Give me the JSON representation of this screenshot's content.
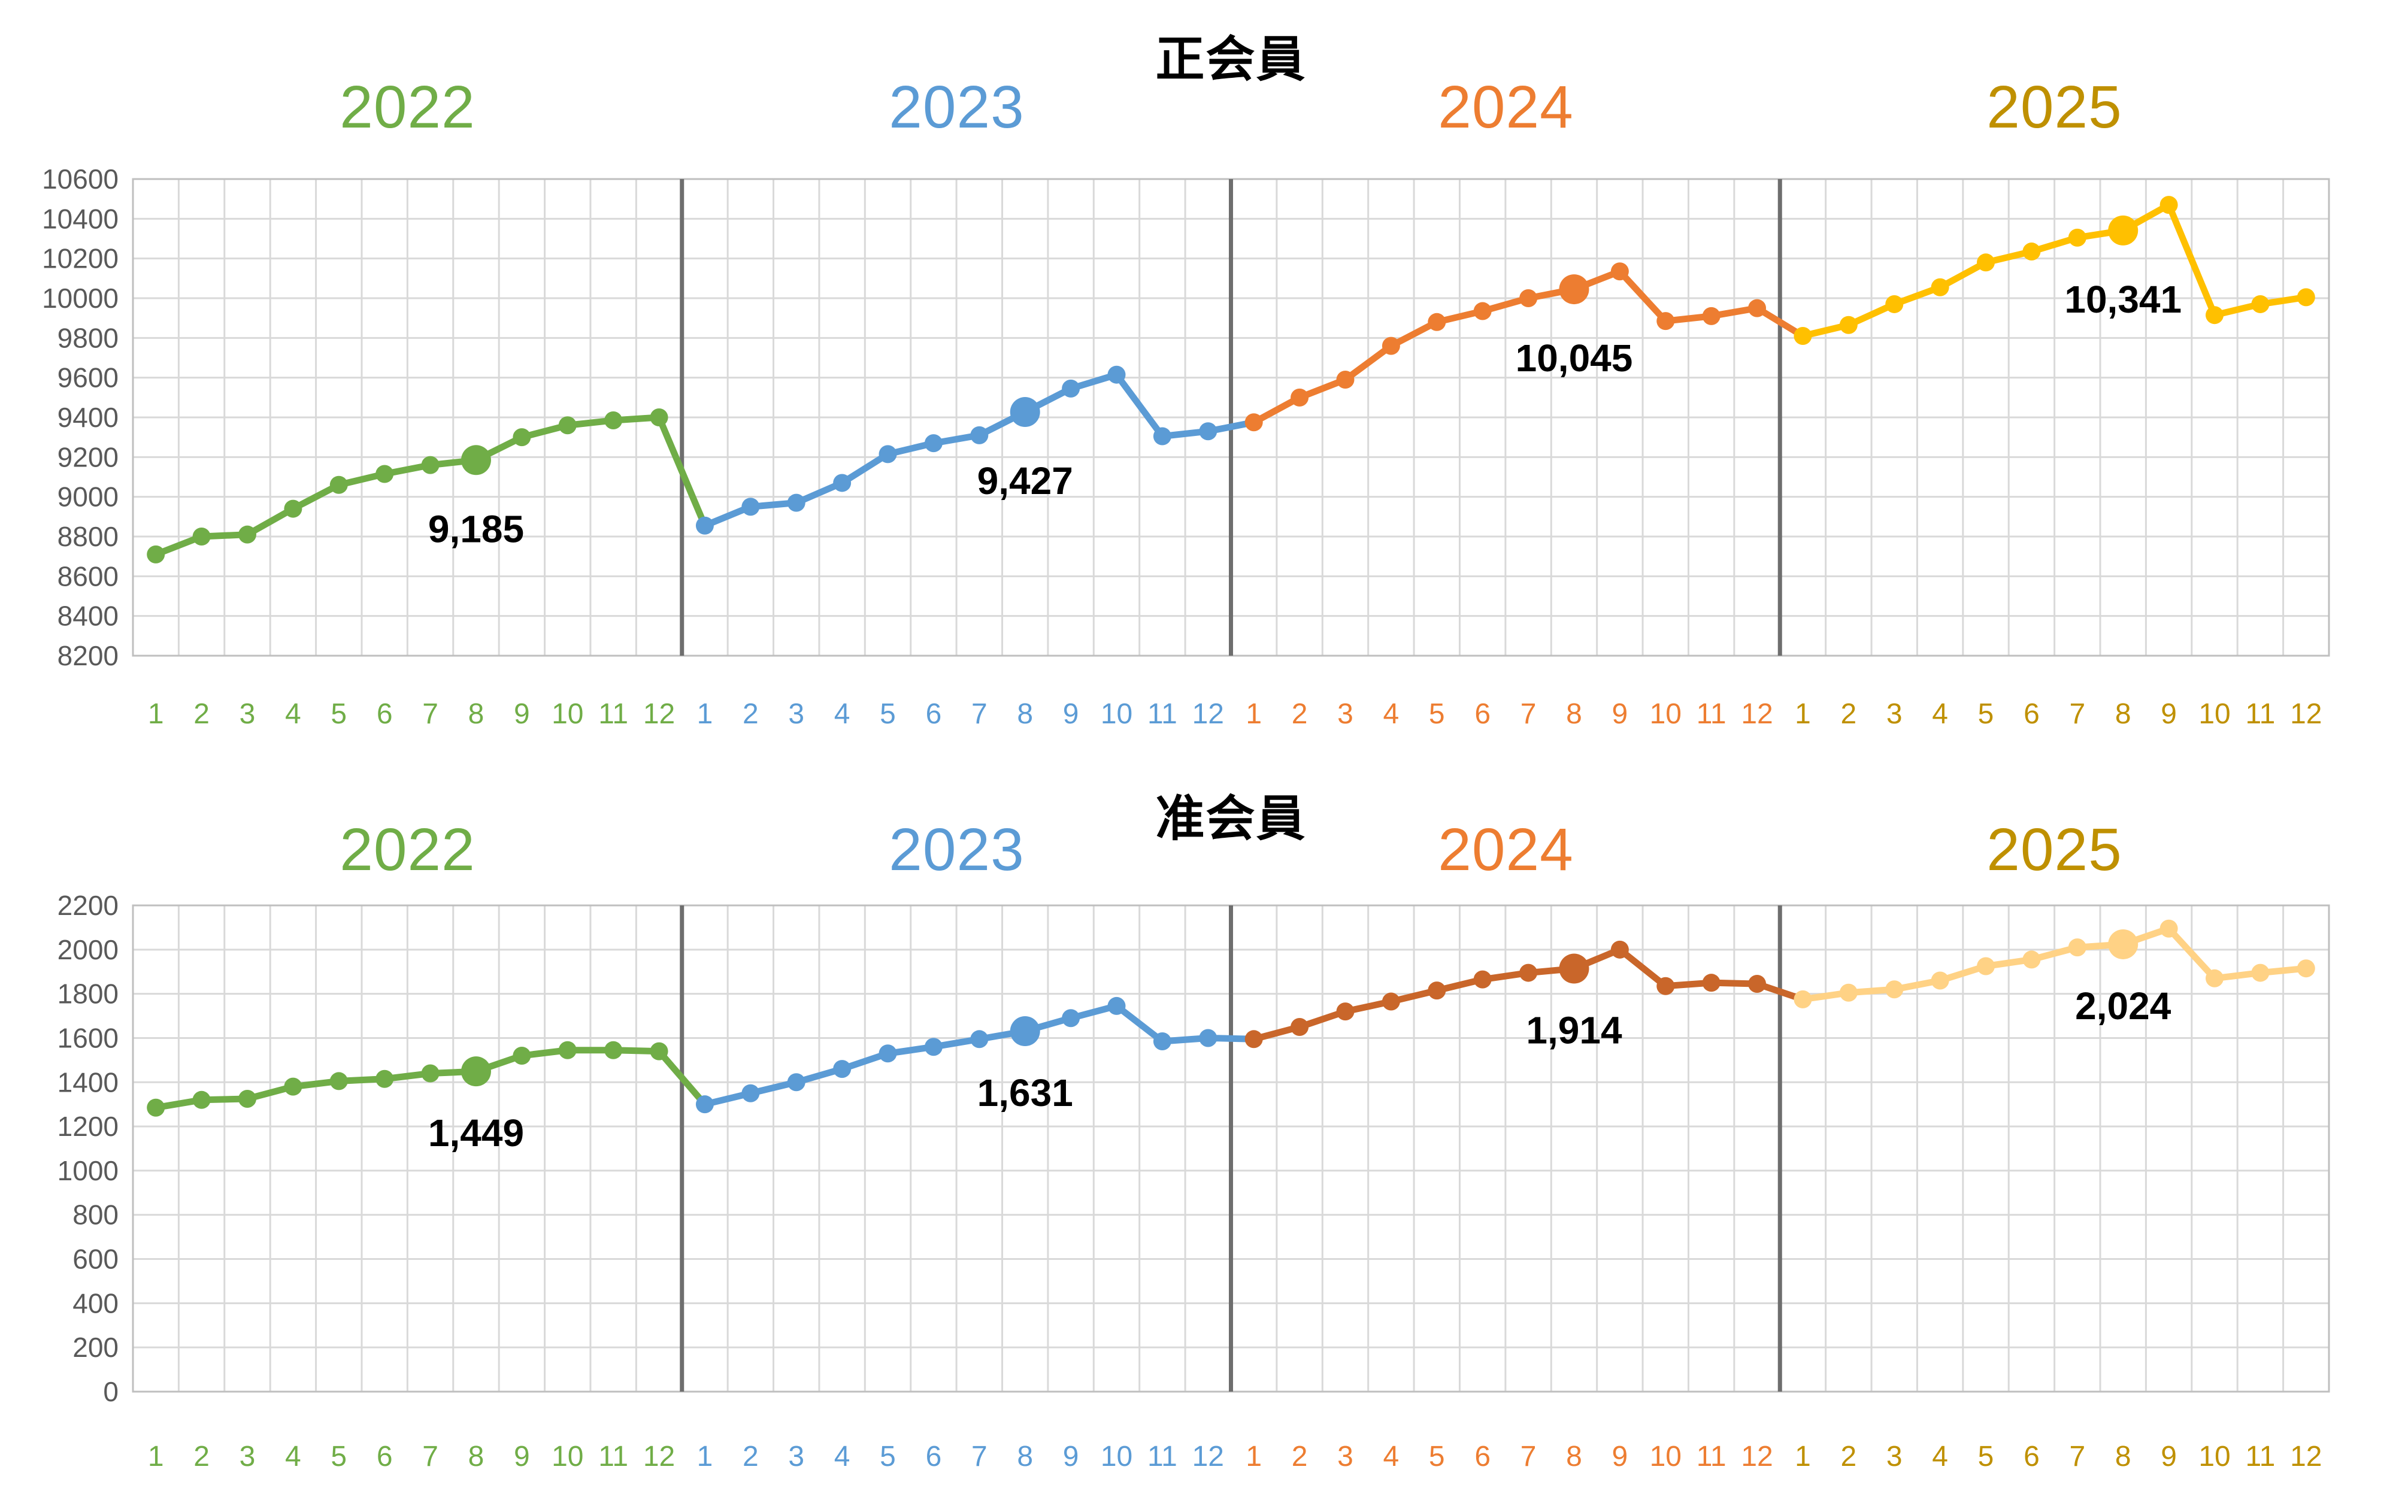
{
  "chart_data": [
    {
      "type": "line",
      "title": "正会員",
      "ylim": [
        8200,
        10600
      ],
      "ytick_step": 200,
      "grid": true,
      "legend_position": "none",
      "months": [
        "1",
        "2",
        "3",
        "4",
        "5",
        "6",
        "7",
        "8",
        "9",
        "10",
        "11",
        "12"
      ],
      "years": [
        {
          "label": "2022",
          "line_color": "#70AD47",
          "label_color": "#70AD47",
          "values": [
            8710,
            8800,
            8810,
            8940,
            9060,
            9115,
            9160,
            9185,
            9300,
            9360,
            9385,
            9400
          ]
        },
        {
          "label": "2023",
          "line_color": "#5B9BD5",
          "label_color": "#5B9BD5",
          "values": [
            8855,
            8950,
            8970,
            9070,
            9215,
            9270,
            9310,
            9427,
            9545,
            9615,
            9305,
            9330
          ]
        },
        {
          "label": "2024",
          "line_color": "#ED7D31",
          "label_color": "#ED7D31",
          "values": [
            9375,
            9500,
            9590,
            9760,
            9880,
            9935,
            10000,
            10045,
            10135,
            9885,
            9910,
            9950
          ]
        },
        {
          "label": "2025",
          "line_color": "#FFC000",
          "label_color": "#BF9000",
          "values": [
            9810,
            9865,
            9970,
            10055,
            10180,
            10235,
            10305,
            10341,
            10470,
            9915,
            9970,
            10005
          ]
        }
      ],
      "annotations": [
        {
          "year": 0,
          "month": 8,
          "label": "9,185"
        },
        {
          "year": 1,
          "month": 8,
          "label": "9,427"
        },
        {
          "year": 2,
          "month": 8,
          "label": "10,045"
        },
        {
          "year": 3,
          "month": 8,
          "label": "10,341"
        }
      ]
    },
    {
      "type": "line",
      "title": "准会員",
      "ylim": [
        0,
        2200
      ],
      "ytick_step": 200,
      "grid": true,
      "legend_position": "none",
      "months": [
        "1",
        "2",
        "3",
        "4",
        "5",
        "6",
        "7",
        "8",
        "9",
        "10",
        "11",
        "12"
      ],
      "years": [
        {
          "label": "2022",
          "line_color": "#70AD47",
          "label_color": "#70AD47",
          "values": [
            1285,
            1320,
            1325,
            1380,
            1405,
            1415,
            1440,
            1449,
            1520,
            1545,
            1545,
            1540
          ]
        },
        {
          "label": "2023",
          "line_color": "#5B9BD5",
          "label_color": "#5B9BD5",
          "values": [
            1300,
            1350,
            1400,
            1460,
            1530,
            1560,
            1595,
            1631,
            1690,
            1745,
            1585,
            1600
          ]
        },
        {
          "label": "2024",
          "line_color": "#C9662A",
          "label_color": "#ED7D31",
          "values": [
            1595,
            1650,
            1720,
            1765,
            1815,
            1865,
            1895,
            1914,
            2000,
            1835,
            1850,
            1845
          ]
        },
        {
          "label": "2025",
          "line_color": "#FFD285",
          "label_color": "#BF9000",
          "values": [
            1775,
            1805,
            1820,
            1860,
            1925,
            1955,
            2010,
            2024,
            2095,
            1870,
            1895,
            1915
          ]
        }
      ],
      "annotations": [
        {
          "year": 0,
          "month": 8,
          "label": "1,449"
        },
        {
          "year": 1,
          "month": 8,
          "label": "1,631"
        },
        {
          "year": 2,
          "month": 8,
          "label": "1,914"
        },
        {
          "year": 3,
          "month": 8,
          "label": "2,024"
        }
      ]
    }
  ],
  "style": {
    "grid_color": "#D9D9D9",
    "axis_color": "#BFBFBF",
    "separator_color": "#6E6E6E",
    "tick_label_color": "#595959",
    "annotation_color": "#000000",
    "background": "#FFFFFF"
  }
}
